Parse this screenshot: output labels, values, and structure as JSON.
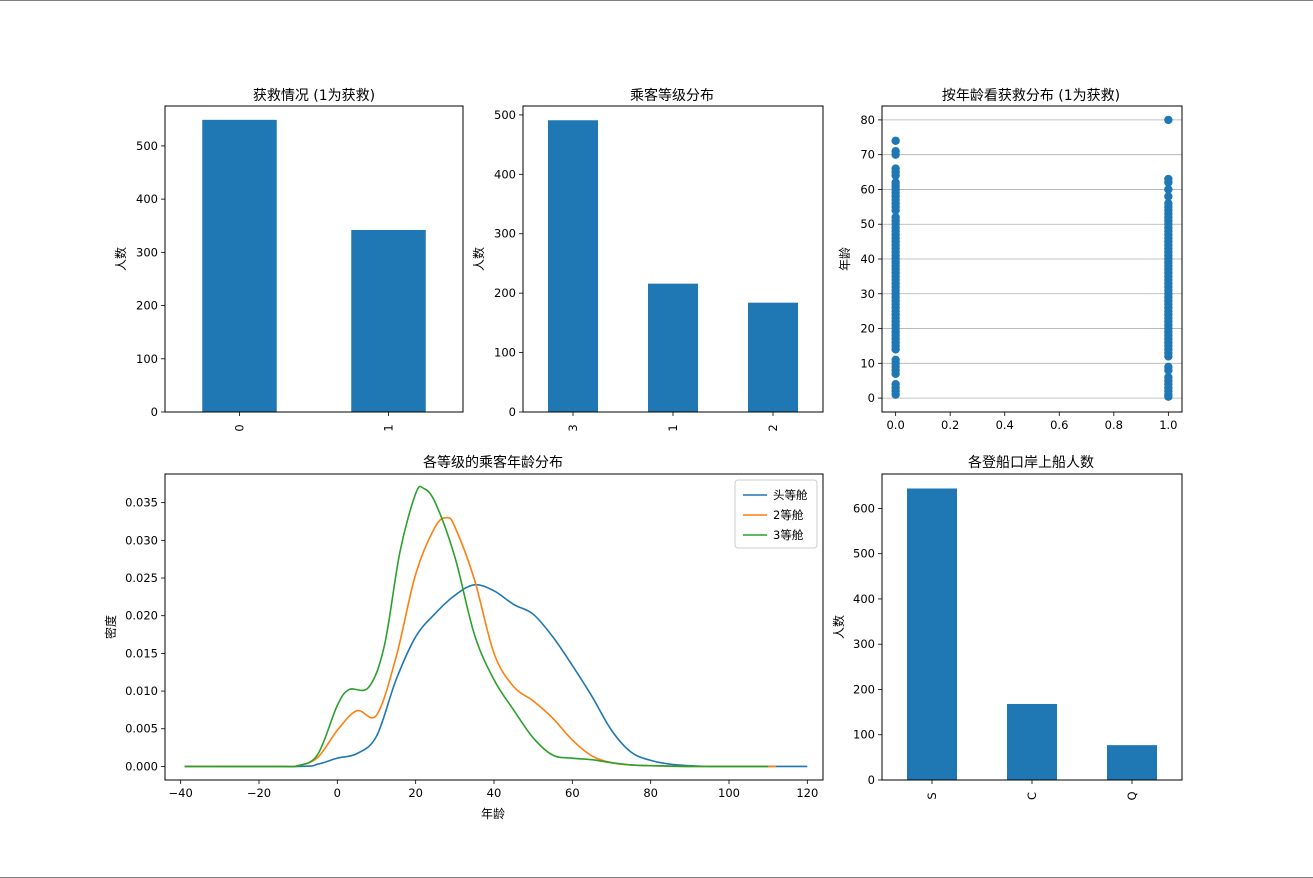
{
  "chart_data": [
    {
      "type": "bar",
      "title": "获救情况 (1为获救)",
      "ylabel": "人数",
      "categories": [
        "0",
        "1"
      ],
      "values": [
        549,
        342
      ],
      "ylim": [
        0,
        575
      ],
      "yticks": [
        0,
        100,
        200,
        300,
        400,
        500
      ],
      "color": "#1f77b4"
    },
    {
      "type": "bar",
      "title": "乘客等级分布",
      "ylabel": "人数",
      "categories": [
        "3",
        "1",
        "2"
      ],
      "values": [
        491,
        216,
        184
      ],
      "ylim": [
        0,
        515
      ],
      "yticks": [
        0,
        100,
        200,
        300,
        400,
        500
      ],
      "color": "#1f77b4"
    },
    {
      "type": "scatter",
      "title": "按年龄看获救分布 (1为获救)",
      "ylabel": "年龄",
      "xlim": [
        -0.05,
        1.05
      ],
      "ylim": [
        -4,
        84
      ],
      "xticks": [
        "0.0",
        "0.2",
        "0.4",
        "0.6",
        "0.8",
        "1.0"
      ],
      "yticks": [
        0,
        10,
        20,
        30,
        40,
        50,
        60,
        70,
        80
      ],
      "grid": "y",
      "color": "#1f77b4",
      "points": [
        {
          "x": 0,
          "y": 1
        },
        {
          "x": 0,
          "y": 2
        },
        {
          "x": 0,
          "y": 3
        },
        {
          "x": 0,
          "y": 4
        },
        {
          "x": 0,
          "y": 7
        },
        {
          "x": 0,
          "y": 8
        },
        {
          "x": 0,
          "y": 9
        },
        {
          "x": 0,
          "y": 10
        },
        {
          "x": 0,
          "y": 11
        },
        {
          "x": 0,
          "y": 14
        },
        {
          "x": 0,
          "y": 15
        },
        {
          "x": 0,
          "y": 16
        },
        {
          "x": 0,
          "y": 17
        },
        {
          "x": 0,
          "y": 18
        },
        {
          "x": 0,
          "y": 19
        },
        {
          "x": 0,
          "y": 20
        },
        {
          "x": 0,
          "y": 21
        },
        {
          "x": 0,
          "y": 22
        },
        {
          "x": 0,
          "y": 23
        },
        {
          "x": 0,
          "y": 24
        },
        {
          "x": 0,
          "y": 25
        },
        {
          "x": 0,
          "y": 26
        },
        {
          "x": 0,
          "y": 27
        },
        {
          "x": 0,
          "y": 28
        },
        {
          "x": 0,
          "y": 29
        },
        {
          "x": 0,
          "y": 30
        },
        {
          "x": 0,
          "y": 31
        },
        {
          "x": 0,
          "y": 32
        },
        {
          "x": 0,
          "y": 33
        },
        {
          "x": 0,
          "y": 34
        },
        {
          "x": 0,
          "y": 35
        },
        {
          "x": 0,
          "y": 36
        },
        {
          "x": 0,
          "y": 37
        },
        {
          "x": 0,
          "y": 38
        },
        {
          "x": 0,
          "y": 39
        },
        {
          "x": 0,
          "y": 40
        },
        {
          "x": 0,
          "y": 41
        },
        {
          "x": 0,
          "y": 42
        },
        {
          "x": 0,
          "y": 43
        },
        {
          "x": 0,
          "y": 44
        },
        {
          "x": 0,
          "y": 45
        },
        {
          "x": 0,
          "y": 46
        },
        {
          "x": 0,
          "y": 47
        },
        {
          "x": 0,
          "y": 48
        },
        {
          "x": 0,
          "y": 49
        },
        {
          "x": 0,
          "y": 50
        },
        {
          "x": 0,
          "y": 51
        },
        {
          "x": 0,
          "y": 52
        },
        {
          "x": 0,
          "y": 54
        },
        {
          "x": 0,
          "y": 55
        },
        {
          "x": 0,
          "y": 56
        },
        {
          "x": 0,
          "y": 57
        },
        {
          "x": 0,
          "y": 58
        },
        {
          "x": 0,
          "y": 59
        },
        {
          "x": 0,
          "y": 60
        },
        {
          "x": 0,
          "y": 61
        },
        {
          "x": 0,
          "y": 62
        },
        {
          "x": 0,
          "y": 64
        },
        {
          "x": 0,
          "y": 65
        },
        {
          "x": 0,
          "y": 66
        },
        {
          "x": 0,
          "y": 70
        },
        {
          "x": 0,
          "y": 71
        },
        {
          "x": 0,
          "y": 74
        },
        {
          "x": 1,
          "y": 0.4
        },
        {
          "x": 1,
          "y": 1
        },
        {
          "x": 1,
          "y": 2
        },
        {
          "x": 1,
          "y": 3
        },
        {
          "x": 1,
          "y": 4
        },
        {
          "x": 1,
          "y": 5
        },
        {
          "x": 1,
          "y": 6
        },
        {
          "x": 1,
          "y": 8
        },
        {
          "x": 1,
          "y": 9
        },
        {
          "x": 1,
          "y": 12
        },
        {
          "x": 1,
          "y": 13
        },
        {
          "x": 1,
          "y": 14
        },
        {
          "x": 1,
          "y": 15
        },
        {
          "x": 1,
          "y": 16
        },
        {
          "x": 1,
          "y": 17
        },
        {
          "x": 1,
          "y": 18
        },
        {
          "x": 1,
          "y": 19
        },
        {
          "x": 1,
          "y": 20
        },
        {
          "x": 1,
          "y": 21
        },
        {
          "x": 1,
          "y": 22
        },
        {
          "x": 1,
          "y": 23
        },
        {
          "x": 1,
          "y": 24
        },
        {
          "x": 1,
          "y": 25
        },
        {
          "x": 1,
          "y": 26
        },
        {
          "x": 1,
          "y": 27
        },
        {
          "x": 1,
          "y": 28
        },
        {
          "x": 1,
          "y": 29
        },
        {
          "x": 1,
          "y": 30
        },
        {
          "x": 1,
          "y": 31
        },
        {
          "x": 1,
          "y": 32
        },
        {
          "x": 1,
          "y": 33
        },
        {
          "x": 1,
          "y": 34
        },
        {
          "x": 1,
          "y": 35
        },
        {
          "x": 1,
          "y": 36
        },
        {
          "x": 1,
          "y": 37
        },
        {
          "x": 1,
          "y": 38
        },
        {
          "x": 1,
          "y": 39
        },
        {
          "x": 1,
          "y": 40
        },
        {
          "x": 1,
          "y": 41
        },
        {
          "x": 1,
          "y": 42
        },
        {
          "x": 1,
          "y": 43
        },
        {
          "x": 1,
          "y": 44
        },
        {
          "x": 1,
          "y": 45
        },
        {
          "x": 1,
          "y": 46
        },
        {
          "x": 1,
          "y": 47
        },
        {
          "x": 1,
          "y": 48
        },
        {
          "x": 1,
          "y": 49
        },
        {
          "x": 1,
          "y": 50
        },
        {
          "x": 1,
          "y": 51
        },
        {
          "x": 1,
          "y": 52
        },
        {
          "x": 1,
          "y": 53
        },
        {
          "x": 1,
          "y": 54
        },
        {
          "x": 1,
          "y": 55
        },
        {
          "x": 1,
          "y": 56
        },
        {
          "x": 1,
          "y": 58
        },
        {
          "x": 1,
          "y": 60
        },
        {
          "x": 1,
          "y": 62
        },
        {
          "x": 1,
          "y": 63
        },
        {
          "x": 1,
          "y": 80
        }
      ]
    },
    {
      "type": "line",
      "title": "各等级的乘客年龄分布",
      "xlabel": "年龄",
      "ylabel": "密度",
      "xlim": [
        -44,
        124
      ],
      "ylim": [
        -0.0018,
        0.0388
      ],
      "xticks": [
        -40,
        -20,
        0,
        20,
        40,
        60,
        80,
        100,
        120
      ],
      "yticks": [
        "0.000",
        "0.005",
        "0.010",
        "0.015",
        "0.020",
        "0.025",
        "0.030",
        "0.035"
      ],
      "legend": "top-right",
      "series": [
        {
          "name": "头等舱",
          "color": "#1f77b4",
          "x": [
            -39,
            -10,
            -5,
            0,
            5,
            10,
            15,
            20,
            25,
            30,
            35,
            40,
            45,
            50,
            55,
            60,
            65,
            70,
            75,
            80,
            85,
            90,
            95,
            100,
            110,
            120
          ],
          "y": [
            0,
            0,
            0.0003,
            0.0011,
            0.0017,
            0.004,
            0.0115,
            0.0172,
            0.0203,
            0.0227,
            0.0241,
            0.0233,
            0.0215,
            0.0202,
            0.0172,
            0.0134,
            0.0093,
            0.0048,
            0.0019,
            0.0008,
            0.0003,
            0.0001,
            0,
            0,
            0,
            0
          ]
        },
        {
          "name": "2等舱",
          "color": "#ff7f0e",
          "x": [
            -39,
            -15,
            -10,
            -5,
            0,
            5,
            10,
            15,
            20,
            25,
            28,
            30,
            35,
            40,
            45,
            50,
            55,
            60,
            65,
            70,
            75,
            80,
            90,
            100,
            112
          ],
          "y": [
            0,
            0,
            0.0001,
            0.0012,
            0.0048,
            0.0074,
            0.0068,
            0.0145,
            0.0255,
            0.0318,
            0.033,
            0.0318,
            0.0248,
            0.015,
            0.0106,
            0.0087,
            0.0064,
            0.0035,
            0.0014,
            0.0005,
            0.0002,
            0.0001,
            0,
            0,
            0
          ]
        },
        {
          "name": "3等舱",
          "color": "#2ca02c",
          "x": [
            -39,
            -15,
            -10,
            -5,
            0,
            3,
            8,
            12,
            16,
            20,
            22,
            25,
            30,
            35,
            40,
            45,
            50,
            55,
            60,
            65,
            70,
            75,
            80,
            90,
            100,
            110
          ],
          "y": [
            0,
            0,
            0.0001,
            0.0016,
            0.0081,
            0.0102,
            0.0105,
            0.016,
            0.0285,
            0.0362,
            0.0369,
            0.035,
            0.0278,
            0.0175,
            0.0115,
            0.0075,
            0.0038,
            0.0015,
            0.0011,
            0.0009,
            0.0005,
            0.0002,
            0.0001,
            0,
            0,
            0
          ]
        }
      ]
    },
    {
      "type": "bar",
      "title": "各登船口岸上船人数",
      "ylabel": "人数",
      "categories": [
        "S",
        "C",
        "Q"
      ],
      "values": [
        644,
        168,
        77
      ],
      "ylim": [
        0,
        676
      ],
      "yticks": [
        0,
        100,
        200,
        300,
        400,
        500,
        600
      ],
      "color": "#1f77b4"
    }
  ]
}
